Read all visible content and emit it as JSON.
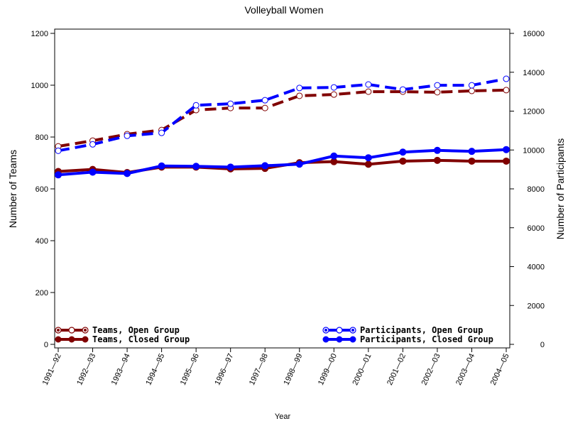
{
  "chart_data": {
    "type": "line",
    "title": "Volleyball Women",
    "xlabel": "Year",
    "ylabel": "Number of Teams",
    "y2label": "Number of Participants",
    "categories": [
      "1991—92",
      "1992—93",
      "1993—94",
      "1994—95",
      "1995—96",
      "1996—97",
      "1997—98",
      "1998—99",
      "1999—00",
      "2000—01",
      "2001—02",
      "2002—03",
      "2003—04",
      "2004—05"
    ],
    "ylim": [
      0,
      1200
    ],
    "y2lim": [
      0,
      16000
    ],
    "yticks": [
      "0",
      "200",
      "400",
      "600",
      "800",
      "1000",
      "1200"
    ],
    "y2ticks": [
      "0",
      "2000",
      "4000",
      "6000",
      "8000",
      "10000",
      "12000",
      "14000",
      "16000"
    ],
    "grid": false,
    "series": [
      {
        "name": "Teams, Open Group",
        "axis": "left",
        "color": "#800000",
        "style": "dashed",
        "marker": "open-circle",
        "values": [
          764,
          786,
          811,
          827,
          904,
          912,
          912,
          959,
          964,
          975,
          975,
          973,
          978,
          981
        ]
      },
      {
        "name": "Teams, Closed Group",
        "axis": "left",
        "color": "#800000",
        "style": "solid",
        "marker": "filled-circle",
        "values": [
          667,
          675,
          663,
          684,
          684,
          677,
          679,
          701,
          705,
          695,
          707,
          710,
          707,
          707
        ]
      },
      {
        "name": "Participants, Open Group",
        "axis": "right",
        "color": "#0000ff",
        "style": "dashed",
        "marker": "open-circle",
        "values": [
          9960,
          10290,
          10730,
          10880,
          12300,
          12380,
          12560,
          13190,
          13220,
          13370,
          13110,
          13330,
          13330,
          13660
        ]
      },
      {
        "name": "Participants, Closed Group",
        "axis": "right",
        "color": "#0000ff",
        "style": "solid",
        "marker": "filled-circle",
        "values": [
          8720,
          8860,
          8790,
          9180,
          9160,
          9120,
          9190,
          9270,
          9690,
          9600,
          9890,
          9980,
          9930,
          10020
        ]
      }
    ],
    "legend": {
      "left_placement": "bottom-left",
      "right_placement": "bottom-right"
    }
  }
}
